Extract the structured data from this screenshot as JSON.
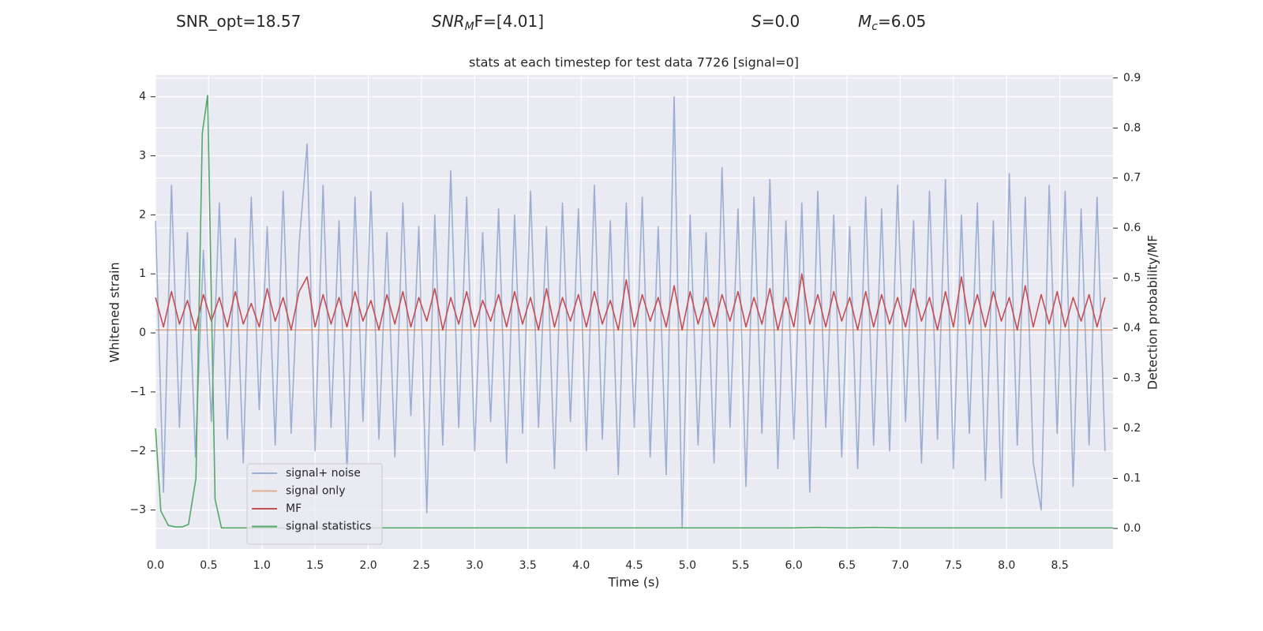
{
  "chart_data": {
    "type": "line",
    "title": "stats at each timestep for test data 7726 [signal=0]",
    "annotations": [
      {
        "text": "SNR_opt=18.57"
      },
      {
        "symbol": "SNR",
        "subscript": "M",
        "text": "F=[4.01]"
      },
      {
        "symbol": "S",
        "text": "=0.0"
      },
      {
        "symbol": "M",
        "subscript": "c",
        "text": "=6.05"
      }
    ],
    "x_label": "Time (s)",
    "y_label": "Whitened strain",
    "y2_label": "Detection probability/MF",
    "xlim": [
      0,
      9.0
    ],
    "ylim": [
      -3.66,
      4.37
    ],
    "y2lim": [
      -0.041,
      0.906
    ],
    "xticks": [
      {
        "value": 0,
        "label": "0.0"
      },
      {
        "value": 0.5,
        "label": "0.5"
      },
      {
        "value": 1,
        "label": "1.0"
      },
      {
        "value": 1.5,
        "label": "1.5"
      },
      {
        "value": 2,
        "label": "2.0"
      },
      {
        "value": 2.5,
        "label": "2.5"
      },
      {
        "value": 3,
        "label": "3.0"
      },
      {
        "value": 3.5,
        "label": "3.5"
      },
      {
        "value": 4,
        "label": "4.0"
      },
      {
        "value": 4.5,
        "label": "4.5"
      },
      {
        "value": 5,
        "label": "5.0"
      },
      {
        "value": 5.5,
        "label": "5.5"
      },
      {
        "value": 6,
        "label": "6.0"
      },
      {
        "value": 6.5,
        "label": "6.5"
      },
      {
        "value": 7,
        "label": "7.0"
      },
      {
        "value": 7.5,
        "label": "7.5"
      },
      {
        "value": 8,
        "label": "8.0"
      },
      {
        "value": 8.5,
        "label": "8.5"
      }
    ],
    "yticks": [
      {
        "value": -3,
        "label": "−3"
      },
      {
        "value": -2,
        "label": "−2"
      },
      {
        "value": -1,
        "label": "−1"
      },
      0,
      1,
      2,
      3,
      4
    ],
    "y2ticks": [
      {
        "value": 0,
        "label": "0.0"
      },
      {
        "value": 0.1,
        "label": "0.1"
      },
      {
        "value": 0.2,
        "label": "0.2"
      },
      {
        "value": 0.3,
        "label": "0.3"
      },
      {
        "value": 0.4,
        "label": "0.4"
      },
      {
        "value": 0.5,
        "label": "0.5"
      },
      {
        "value": 0.6,
        "label": "0.6"
      },
      {
        "value": 0.7,
        "label": "0.7"
      },
      {
        "value": 0.8,
        "label": "0.8"
      },
      {
        "value": 0.9,
        "label": "0.9"
      }
    ],
    "grid": true,
    "legend": "lower left",
    "x": [
      0,
      0.075,
      0.15,
      0.225,
      0.3,
      0.375,
      0.45,
      0.525,
      0.6,
      0.675,
      0.75,
      0.825,
      0.9,
      0.975,
      1.05,
      1.125,
      1.2,
      1.275,
      1.35,
      1.425,
      1.5,
      1.575,
      1.65,
      1.725,
      1.8,
      1.875,
      1.95,
      2.025,
      2.1,
      2.175,
      2.25,
      2.325,
      2.4,
      2.475,
      2.55,
      2.625,
      2.7,
      2.775,
      2.85,
      2.925,
      3,
      3.075,
      3.15,
      3.225,
      3.3,
      3.375,
      3.45,
      3.525,
      3.6,
      3.675,
      3.75,
      3.825,
      3.9,
      3.975,
      4.05,
      4.125,
      4.2,
      4.275,
      4.35,
      4.425,
      4.5,
      4.575,
      4.65,
      4.725,
      4.8,
      4.875,
      4.95,
      5.025,
      5.1,
      5.175,
      5.25,
      5.325,
      5.4,
      5.475,
      5.55,
      5.625,
      5.7,
      5.775,
      5.85,
      5.925,
      6,
      6.075,
      6.15,
      6.225,
      6.3,
      6.375,
      6.45,
      6.525,
      6.6,
      6.675,
      6.75,
      6.825,
      6.9,
      6.975,
      7.05,
      7.125,
      7.2,
      7.275,
      7.35,
      7.425,
      7.5,
      7.575,
      7.65,
      7.725,
      7.8,
      7.875,
      7.95,
      8.025,
      8.1,
      8.175,
      8.25,
      8.325,
      8.4,
      8.475,
      8.55,
      8.625,
      8.7,
      8.775,
      8.85,
      8.925
    ],
    "series": [
      {
        "name": "signal+ noise",
        "color": "#4c72b0",
        "opacity": 0.5,
        "axis": "y",
        "values": [
          1.9,
          -2.7,
          2.5,
          -1.6,
          1.7,
          -2.1,
          1.4,
          -1.5,
          2.2,
          -1.8,
          1.6,
          -2.2,
          2.3,
          -1.3,
          1.8,
          -1.9,
          2.4,
          -1.7,
          1.5,
          3.2,
          -2.0,
          2.5,
          -1.6,
          1.9,
          -2.4,
          2.3,
          -1.5,
          2.4,
          -1.8,
          1.7,
          -2.1,
          2.2,
          -1.4,
          1.8,
          -3.05,
          2.0,
          -1.9,
          2.75,
          -1.6,
          2.3,
          -2.0,
          1.7,
          -1.5,
          2.1,
          -2.2,
          2.0,
          -1.7,
          2.4,
          -1.6,
          1.8,
          -2.3,
          2.2,
          -1.5,
          2.1,
          -2.0,
          2.5,
          -1.8,
          1.9,
          -2.4,
          2.2,
          -1.6,
          2.3,
          -2.1,
          1.8,
          -2.4,
          4.0,
          -3.3,
          2.0,
          -1.9,
          1.7,
          -2.2,
          2.8,
          -1.6,
          2.1,
          -2.6,
          2.3,
          -1.7,
          2.6,
          -2.3,
          1.9,
          -1.8,
          2.2,
          -2.7,
          2.4,
          -1.6,
          2.0,
          -2.1,
          1.8,
          -2.3,
          2.3,
          -1.9,
          2.1,
          -2.0,
          2.5,
          -1.5,
          1.9,
          -2.2,
          2.4,
          -1.8,
          2.6,
          -2.3,
          2.0,
          -1.7,
          2.2,
          -2.5,
          1.9,
          -2.8,
          2.7,
          -1.9,
          2.3,
          -2.2,
          -3.0,
          2.5,
          -1.7,
          2.4,
          -2.6,
          2.1,
          -1.9,
          2.3,
          -2.0
        ]
      },
      {
        "name": "signal only",
        "color": "#dd8452",
        "opacity": 0.6,
        "axis": "y",
        "x": [
          0,
          9.0
        ],
        "values": [
          0.05,
          0.05
        ]
      },
      {
        "name": "MF",
        "color": "#c44e52",
        "opacity": 1,
        "axis": "y",
        "values": [
          0.6,
          0.1,
          0.7,
          0.15,
          0.55,
          0.05,
          0.65,
          0.2,
          0.6,
          0.1,
          0.7,
          0.15,
          0.5,
          0.1,
          0.75,
          0.2,
          0.6,
          0.05,
          0.7,
          0.95,
          0.1,
          0.65,
          0.15,
          0.6,
          0.1,
          0.7,
          0.2,
          0.55,
          0.05,
          0.65,
          0.15,
          0.7,
          0.1,
          0.6,
          0.2,
          0.75,
          0.05,
          0.6,
          0.15,
          0.7,
          0.1,
          0.55,
          0.2,
          0.65,
          0.1,
          0.7,
          0.15,
          0.6,
          0.05,
          0.75,
          0.1,
          0.6,
          0.2,
          0.65,
          0.1,
          0.7,
          0.15,
          0.55,
          0.05,
          0.9,
          0.1,
          0.65,
          0.2,
          0.6,
          0.1,
          0.8,
          0.05,
          0.7,
          0.15,
          0.6,
          0.1,
          0.65,
          0.2,
          0.7,
          0.1,
          0.6,
          0.15,
          0.75,
          0.05,
          0.6,
          0.1,
          1.0,
          0.15,
          0.65,
          0.1,
          0.7,
          0.2,
          0.6,
          0.05,
          0.7,
          0.1,
          0.65,
          0.15,
          0.6,
          0.1,
          0.75,
          0.2,
          0.6,
          0.05,
          0.7,
          0.1,
          0.95,
          0.15,
          0.65,
          0.1,
          0.7,
          0.2,
          0.6,
          0.05,
          0.8,
          0.1,
          0.65,
          0.15,
          0.7,
          0.1,
          0.6,
          0.2,
          0.65,
          0.1,
          0.6
        ]
      },
      {
        "name": "signal statistics",
        "color": "#55a868",
        "opacity": 1,
        "axis": "y2",
        "x": [
          0,
          0.05,
          0.12,
          0.19,
          0.25,
          0.31,
          0.38,
          0.44,
          0.49,
          0.56,
          0.62,
          1.0,
          2.0,
          3.0,
          4.0,
          5.0,
          6.0,
          6.2,
          6.5,
          6.75,
          7.0,
          8.0,
          9.0
        ],
        "values": [
          0.2,
          0.035,
          0.006,
          0.003,
          0.003,
          0.008,
          0.1,
          0.79,
          0.865,
          0.058,
          0.001,
          0.001,
          0.001,
          0.001,
          0.001,
          0.001,
          0.001,
          0.002,
          0.001,
          0.002,
          0.001,
          0.001,
          0.001
        ]
      }
    ]
  }
}
